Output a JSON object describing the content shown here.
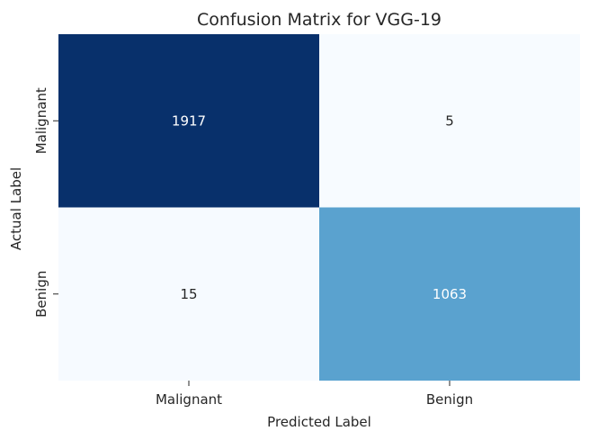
{
  "chart_data": {
    "type": "heatmap",
    "title": "Confusion Matrix for VGG-19",
    "xlabel": "Predicted Label",
    "ylabel": "Actual Label",
    "x_categories": [
      "Malignant",
      "Benign"
    ],
    "y_categories": [
      "Malignant",
      "Benign"
    ],
    "values": [
      [
        1917,
        5
      ],
      [
        15,
        1063
      ]
    ],
    "colormap": "Blues",
    "colorbar": false,
    "grid": false,
    "colors": {
      "low": "#f7fbff",
      "high": "#08306b",
      "text_dark": "#262626",
      "text_light": "#ffffff"
    }
  }
}
